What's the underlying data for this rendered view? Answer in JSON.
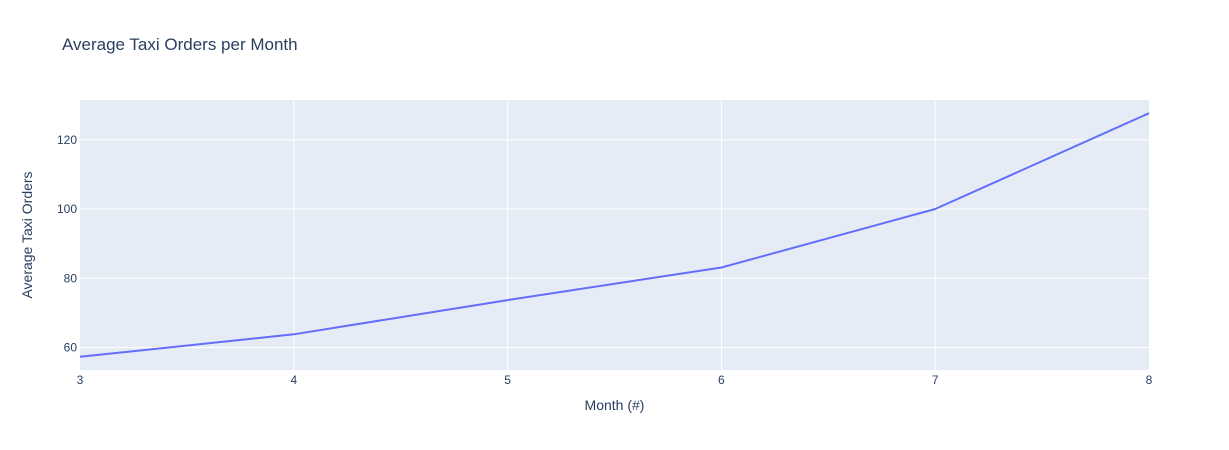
{
  "chart_data": {
    "type": "line",
    "title": "Average Taxi Orders per Month",
    "xlabel": "Month (#)",
    "ylabel": "Average Taxi Orders",
    "x": [
      3,
      4,
      5,
      6,
      7,
      8
    ],
    "series": [
      {
        "values": [
          57.3,
          63.8,
          73.7,
          83.1,
          100.0,
          127.7
        ]
      }
    ],
    "xlim": [
      3,
      8
    ],
    "ylim": [
      53.5,
      131.5
    ],
    "xticks": [
      3,
      4,
      5,
      6,
      7,
      8
    ],
    "yticks": [
      60,
      80,
      100,
      120
    ],
    "grid": true,
    "legend": "none"
  },
  "colors": {
    "plot_background": "#e5ecf6",
    "grid": "#ffffff",
    "line": "#636efa",
    "text": "#2a3f5f"
  }
}
